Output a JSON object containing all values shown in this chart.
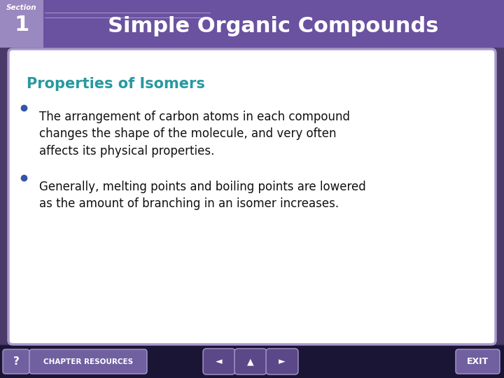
{
  "title": "Simple Organic Compounds",
  "section_label": "Section",
  "section_number": "1",
  "slide_subtitle": "Properties of Isomers",
  "bullet1_text": "The arrangement of carbon atoms in each compound\nchanges the shape of the molecule, and very often\naffects its physical properties.",
  "bullet2_text": "Generally, melting points and boiling points are lowered\nas the amount of branching in an isomer increases.",
  "bg_color": "#4a3a6a",
  "header_bg": "#6a52a0",
  "header_text_color": "#ffffff",
  "section_box_color": "#9a88c0",
  "card_bg": "#ffffff",
  "card_border": "#aa99cc",
  "subtitle_color": "#2899a0",
  "body_text_color": "#111111",
  "bullet_color": "#3355aa",
  "bottom_bar_color": "#1a1535",
  "button_bg": "#7060a0",
  "button_border": "#aa99cc",
  "nav_button_bg": "#5a4888"
}
